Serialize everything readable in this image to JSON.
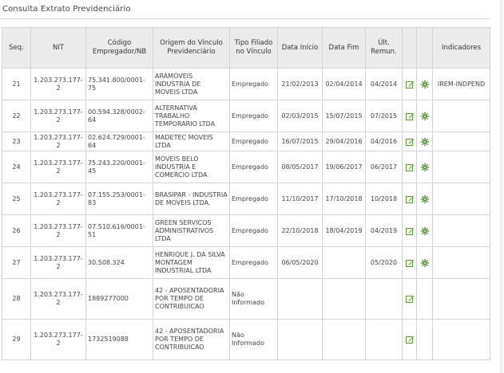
{
  "page": {
    "title": "Consulta Extrato Previdenciário"
  },
  "colors": {
    "edit_icon": "#5f9e35",
    "detail_icon": "#4a8a2a",
    "header_bg": "#ececec",
    "border": "#d4d4d4"
  },
  "table": {
    "headers": {
      "seq": "Seq.",
      "nit": "NIT",
      "codigo": "Código Empregador/NB",
      "origem": "Origem do Vínculo Previdenciário",
      "tipo": "Tipo Filiado no Vínculo",
      "inicio": "Data Início",
      "fim": "Data Fim",
      "remun": "Últ. Remun.",
      "indicadores": "Indicadores"
    },
    "icons": {
      "edit": "edit-icon",
      "detail": "detail-icon"
    },
    "rows": [
      {
        "seq": "21",
        "nit": "1.203.273.177-2",
        "codigo": "75.341.800/0001-75",
        "origem": "ARAMOVEIS INDUSTRIA DE MOVEIS LTDA",
        "tipo": "Empregado",
        "inicio": "21/02/2013",
        "fim": "02/04/2014",
        "remun": "04/2014",
        "indicadores": "IREM-INDPEND"
      },
      {
        "seq": "22",
        "nit": "1.203.273.177-2",
        "codigo": "00.594.328/0002-64",
        "origem": "ALTERNATIVA TRABALHO TEMPORARIO LTDA",
        "tipo": "Empregado",
        "inicio": "02/03/2015",
        "fim": "15/07/2015",
        "remun": "07/2015",
        "indicadores": ""
      },
      {
        "seq": "23",
        "nit": "1.203.273.177-2",
        "codigo": "02.624.729/0001-64",
        "origem": "MADETEC MOVEIS LTDA",
        "tipo": "Empregado",
        "inicio": "16/07/2015",
        "fim": "29/04/2016",
        "remun": "04/2016",
        "indicadores": ""
      },
      {
        "seq": "24",
        "nit": "1.203.273.177-2",
        "codigo": "75.243.220/0001-45",
        "origem": "MOVEIS BELO INDUSTRIA E COMERCIO LTDA",
        "tipo": "Empregado",
        "inicio": "08/05/2017",
        "fim": "19/06/2017",
        "remun": "06/2017",
        "indicadores": ""
      },
      {
        "seq": "25",
        "nit": "1.203.273.177-2",
        "codigo": "07.155.253/0001-83",
        "origem": "BRASIPAR - INDUSTRIA DE MOVEIS LTDA.",
        "tipo": "Empregado",
        "inicio": "11/10/2017",
        "fim": "17/10/2018",
        "remun": "10/2018",
        "indicadores": ""
      },
      {
        "seq": "26",
        "nit": "1.203.273.177-2",
        "codigo": "07.510.616/0001-51",
        "origem": "GREEN SERVICOS ADMINISTRATIVOS LTDA",
        "tipo": "Empregado",
        "inicio": "22/10/2018",
        "fim": "18/04/2019",
        "remun": "04/2019",
        "indicadores": ""
      },
      {
        "seq": "27",
        "nit": "1.203.273.177-2",
        "codigo": "30.508.324",
        "origem": "HENRIQUE J. DA SILVA MONTAGEM INDUSTRIAL LTDA",
        "tipo": "Empregado",
        "inicio": "06/05/2020",
        "fim": "",
        "remun": "05/2020",
        "indicadores": ""
      },
      {
        "seq": "28",
        "nit": "1.203.273.177-2",
        "codigo": "1889277000",
        "origem": "42 - APOSENTADORIA POR TEMPO DE CONTRIBUICAO",
        "tipo": "Não Informado",
        "inicio": "",
        "fim": "",
        "remun": "",
        "indicadores": ""
      },
      {
        "seq": "29",
        "nit": "1.203.273.177-2",
        "codigo": "1732519088",
        "origem": "42 - APOSENTADORIA POR TEMPO DE CONTRIBUICAO",
        "tipo": "Não Informado",
        "inicio": "",
        "fim": "",
        "remun": "",
        "indicadores": ""
      }
    ]
  }
}
